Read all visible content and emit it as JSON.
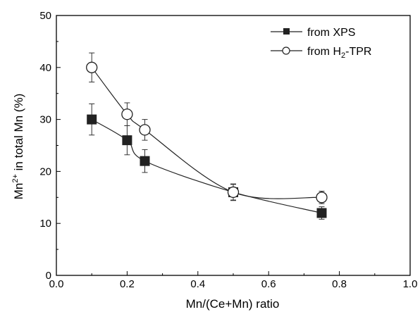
{
  "chart_data": {
    "type": "scatter",
    "xlabel": "Mn/(Ce+Mn) ratio",
    "ylabel": {
      "base": "Mn",
      "sup": "2+",
      "rest": " in total Mn (%)"
    },
    "xlim": [
      0.0,
      1.0
    ],
    "ylim": [
      0,
      50
    ],
    "x_ticks": [
      "0.0",
      "0.2",
      "0.4",
      "0.6",
      "0.8",
      "1.0"
    ],
    "y_ticks": [
      "0",
      "10",
      "20",
      "30",
      "40",
      "50"
    ],
    "grid": false,
    "legend_position": "top-right",
    "series": [
      {
        "name": "from XPS",
        "marker": "filled-square",
        "color": "#222222",
        "x": [
          0.1,
          0.2,
          0.25,
          0.5,
          0.75
        ],
        "y": [
          30,
          26,
          22,
          16,
          12
        ],
        "err": [
          3,
          2.8,
          2.2,
          1.5,
          1.2
        ]
      },
      {
        "name_parts": [
          "from H",
          "2",
          "-TPR"
        ],
        "marker": "open-circle",
        "color": "#222222",
        "x": [
          0.1,
          0.2,
          0.25,
          0.5,
          0.75
        ],
        "y": [
          40,
          31,
          28,
          16,
          15
        ],
        "err": [
          2.8,
          2.2,
          2.0,
          1.6,
          1.2
        ]
      }
    ]
  }
}
